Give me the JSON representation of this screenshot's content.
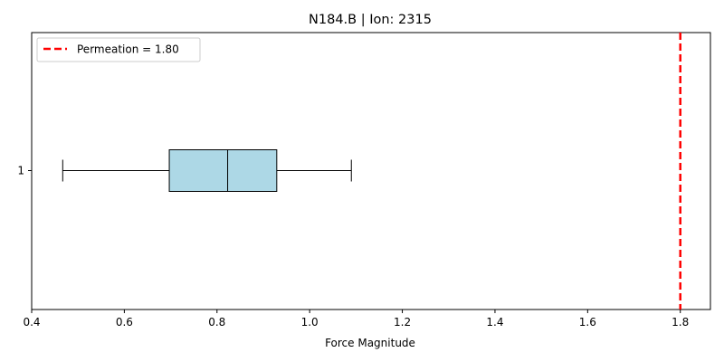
{
  "chart_data": {
    "type": "boxplot",
    "title": "N184.B | Ion: 2315",
    "xlabel": "Force Magnitude",
    "ylabel": "",
    "xlim": [
      0.4,
      1.865
    ],
    "x_ticks": [
      "0.4",
      "0.6",
      "0.8",
      "1.0",
      "1.2",
      "1.4",
      "1.6",
      "1.8"
    ],
    "y_ticks": [
      "1"
    ],
    "orientation": "horizontal",
    "grid": false,
    "box": {
      "category": "1",
      "whisker_low": 0.467,
      "q1": 0.697,
      "median": 0.823,
      "q3": 0.929,
      "whisker_high": 1.09,
      "fill_color": "#add8e6"
    },
    "reference_line": {
      "x": 1.8,
      "label": "Permeation = 1.80",
      "color": "#ff0000",
      "style": "dashed"
    },
    "legend": {
      "position": "top-left"
    }
  }
}
